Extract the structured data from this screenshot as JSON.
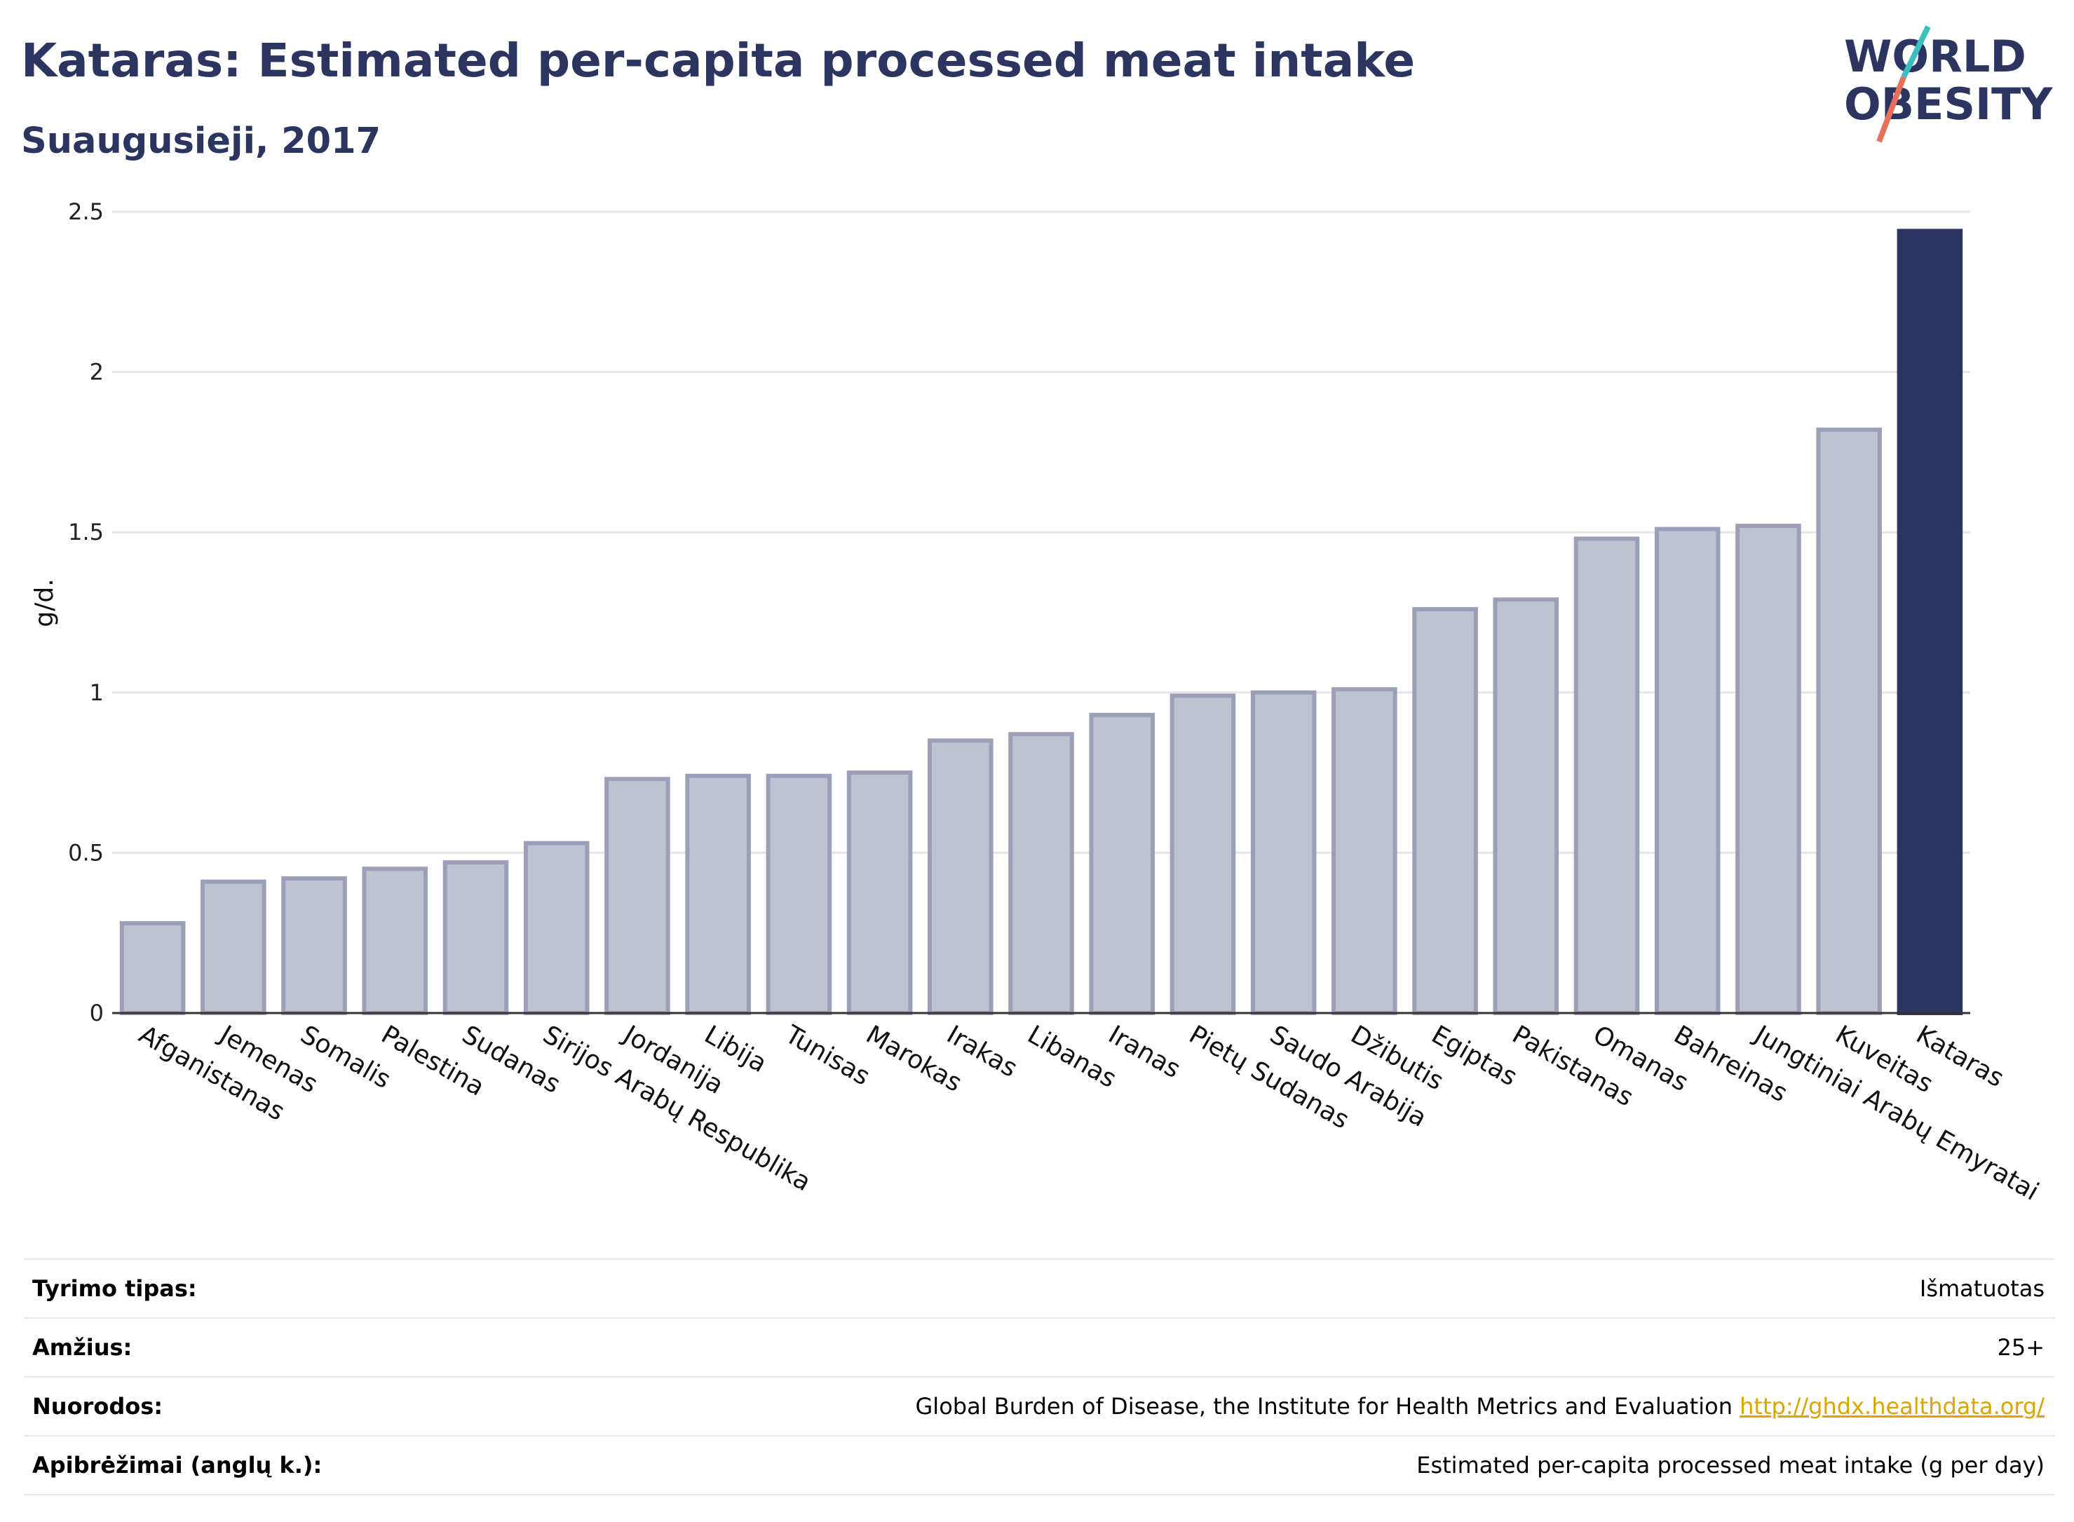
{
  "header": {
    "title": "Kataras: Estimated per-capita processed meat intake",
    "subtitle": "Suaugusieji, 2017"
  },
  "logo": {
    "line1": "WORLD",
    "line2": "OBESITY",
    "colors": {
      "text": "#2b3560",
      "slash_top": "#3bbfbf",
      "slash_bottom": "#e8705a"
    }
  },
  "chart_data": {
    "type": "bar",
    "ylabel": "g/d.",
    "ylim": [
      0,
      2.5
    ],
    "yticks": [
      "0",
      "0.5",
      "1",
      "1.5",
      "2",
      "2.5"
    ],
    "grid": true,
    "categories": [
      "Afganistanas",
      "Jemenas",
      "Somalis",
      "Palestina",
      "Sudanas",
      "Sirijos Arabų Respublika",
      "Jordanija",
      "Libija",
      "Tunisas",
      "Marokas",
      "Irakas",
      "Libanas",
      "Iranas",
      "Pietų Sudanas",
      "Saudo Arabija",
      "Džibutis",
      "Egiptas",
      "Pakistanas",
      "Omanas",
      "Bahreinas",
      "Jungtiniai Arabų Emyratai",
      "Kuveitas",
      "Kataras"
    ],
    "values": [
      0.28,
      0.41,
      0.42,
      0.45,
      0.47,
      0.53,
      0.73,
      0.74,
      0.74,
      0.75,
      0.85,
      0.87,
      0.93,
      0.99,
      1.0,
      1.01,
      1.26,
      1.29,
      1.48,
      1.51,
      1.52,
      1.82,
      2.44
    ],
    "highlight": "Kataras",
    "colors": {
      "bar": "#bfc2cf",
      "bar_border": "#9ba0b8",
      "highlight": "#2b3560",
      "grid": "#e6e6ea"
    }
  },
  "info": [
    {
      "label": "Tyrimo tipas:",
      "value": "Išmatuotas"
    },
    {
      "label": "Amžius:",
      "value": "25+"
    },
    {
      "label": "Nuorodos:",
      "value": "Global Burden of Disease, the Institute for Health Metrics and Evaluation",
      "link": "http://ghdx.healthdata.org/"
    },
    {
      "label": "Apibrėžimai (anglų k.):",
      "value": "Estimated per-capita processed meat intake (g per day)"
    }
  ]
}
